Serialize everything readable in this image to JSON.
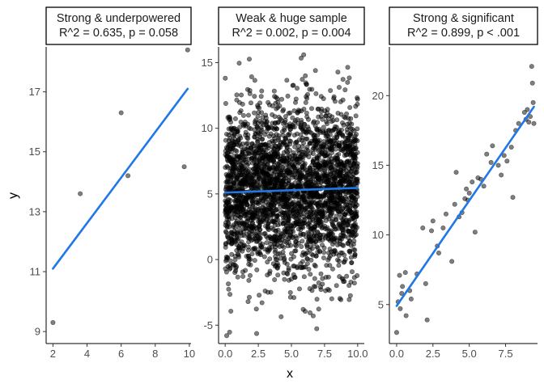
{
  "chart_data": [
    {
      "type": "scatter",
      "title_lines": [
        "Strong & underpowered",
        "R^2 = 0.635, p = 0.058"
      ],
      "xlim": [
        1.6,
        10.1
      ],
      "ylim": [
        8.6,
        18.5
      ],
      "x_ticks": [
        2,
        4,
        6,
        8,
        10
      ],
      "x_tick_labels": [
        "2",
        "4",
        "6",
        "8",
        "10"
      ],
      "y_ticks": [
        9,
        11,
        13,
        15,
        17
      ],
      "y_tick_labels": [
        "9",
        "11",
        "13",
        "15",
        "17"
      ],
      "points": [
        [
          2.0,
          9.3
        ],
        [
          3.6,
          13.6
        ],
        [
          6.0,
          16.3
        ],
        [
          6.4,
          14.2
        ],
        [
          9.7,
          14.5
        ],
        [
          9.9,
          18.4
        ]
      ],
      "fit": {
        "x": [
          2.0,
          9.9
        ],
        "y": [
          11.1,
          17.1
        ]
      }
    },
    {
      "type": "scatter",
      "title_lines": [
        "Weak & huge sample",
        "R^2 = 0.002, p = 0.004"
      ],
      "xlim": [
        -0.5,
        10.5
      ],
      "ylim": [
        -6.4,
        16.2
      ],
      "x_ticks": [
        0,
        2.5,
        5,
        7.5,
        10
      ],
      "x_tick_labels": [
        "0.0",
        "2.5",
        "5.0",
        "7.5",
        "10.0"
      ],
      "y_ticks": [
        -5,
        0,
        5,
        10,
        15
      ],
      "y_tick_labels": [
        "-5",
        "0",
        "5",
        "10",
        "15"
      ],
      "points_generated": {
        "n": 3000,
        "x_range": [
          0,
          10
        ],
        "intercept": 5.1,
        "slope": 0.036,
        "sd": 3.2,
        "y_range": [
          -5.8,
          15.6
        ]
      },
      "fit": {
        "x": [
          0,
          10
        ],
        "y": [
          5.1,
          5.46
        ]
      }
    },
    {
      "type": "scatter",
      "title_lines": [
        "Strong & significant",
        "R^2 = 0.899, p < .001"
      ],
      "xlim": [
        -0.5,
        9.7
      ],
      "ylim": [
        2.2,
        23.5
      ],
      "x_ticks": [
        0,
        2.5,
        5,
        7.5
      ],
      "x_tick_labels": [
        "0.0",
        "2.5",
        "5.0",
        "7.5"
      ],
      "y_ticks": [
        5,
        10,
        15,
        20
      ],
      "y_tick_labels": [
        "5",
        "10",
        "15",
        "20"
      ],
      "points": [
        [
          0.0,
          3.0
        ],
        [
          0.1,
          5.2
        ],
        [
          0.2,
          7.1
        ],
        [
          0.25,
          4.7
        ],
        [
          0.35,
          5.8
        ],
        [
          0.4,
          6.3
        ],
        [
          0.6,
          7.3
        ],
        [
          0.65,
          4.2
        ],
        [
          0.9,
          6.0
        ],
        [
          1.0,
          5.4
        ],
        [
          1.4,
          7.2
        ],
        [
          1.8,
          10.5
        ],
        [
          2.0,
          6.5
        ],
        [
          2.1,
          3.9
        ],
        [
          2.4,
          10.3
        ],
        [
          2.5,
          11.0
        ],
        [
          2.8,
          9.2
        ],
        [
          2.9,
          8.7
        ],
        [
          3.2,
          10.5
        ],
        [
          3.4,
          11.5
        ],
        [
          3.8,
          8.1
        ],
        [
          4.0,
          12.2
        ],
        [
          4.1,
          14.5
        ],
        [
          4.3,
          11.3
        ],
        [
          4.5,
          11.6
        ],
        [
          4.7,
          12.6
        ],
        [
          4.8,
          13.3
        ],
        [
          4.9,
          12.5
        ],
        [
          5.0,
          13.0
        ],
        [
          5.2,
          13.8
        ],
        [
          5.4,
          10.2
        ],
        [
          5.6,
          14.1
        ],
        [
          5.8,
          14.0
        ],
        [
          6.0,
          13.5
        ],
        [
          6.2,
          15.8
        ],
        [
          6.5,
          15.2
        ],
        [
          6.6,
          16.4
        ],
        [
          7.0,
          15.0
        ],
        [
          7.2,
          14.3
        ],
        [
          7.4,
          15.7
        ],
        [
          7.6,
          15.3
        ],
        [
          7.9,
          16.3
        ],
        [
          8.0,
          12.7
        ],
        [
          8.2,
          17.5
        ],
        [
          8.4,
          18.0
        ],
        [
          8.8,
          18.8
        ],
        [
          8.9,
          18.3
        ],
        [
          9.0,
          19.0
        ],
        [
          9.1,
          18.1
        ],
        [
          9.2,
          18.5
        ],
        [
          9.3,
          22.1
        ],
        [
          9.35,
          20.9
        ],
        [
          9.4,
          19.5
        ],
        [
          9.45,
          18.0
        ]
      ],
      "fit": {
        "x": [
          0.0,
          9.45
        ],
        "y": [
          4.9,
          19.2
        ]
      }
    }
  ],
  "axes": {
    "xlabel": "x",
    "ylabel": "y"
  },
  "colors": {
    "points": "#000000",
    "fit_line": "#1f77e8",
    "strip_background": "#ffffff",
    "axis": "#000000"
  }
}
